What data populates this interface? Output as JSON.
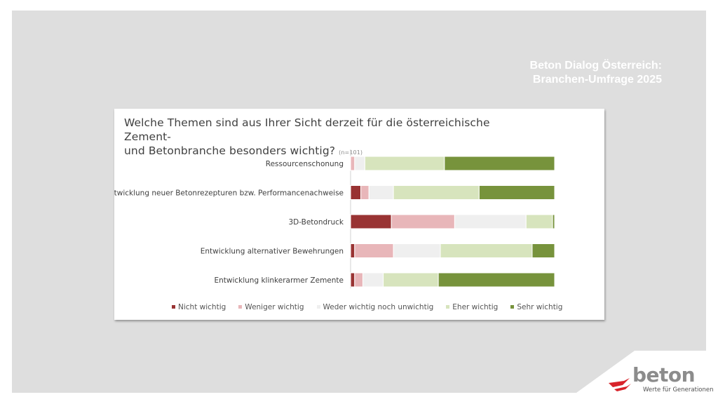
{
  "header": {
    "line1": "Beton Dialog Österreich:",
    "line2": "Branchen-Umfrage 2025"
  },
  "question": {
    "line1": "Welche Themen sind aus Ihrer Sicht derzeit für die österreichische Zement-",
    "line2": "und Betonbranche besonders wichtig?",
    "sample": "(n=101)"
  },
  "colors": {
    "slide_bg": "#dedede",
    "nicht": "#993333",
    "weniger": "#e8b6b9",
    "weder": "#efefef",
    "eher": "#d7e4bd",
    "sehr": "#77933c"
  },
  "chart_data": {
    "type": "bar",
    "orientation": "horizontal-stacked-100",
    "categories": [
      "Ressourcenschonung",
      "Entwicklung neuer Betonrezepturen bzw. Performancenachweise",
      "3D-Betondruck",
      "Entwicklung alternativer Bewehrungen",
      "Entwicklung klinkerarmer Zemente"
    ],
    "series": [
      {
        "name": "Nicht wichtig",
        "color": "#993333",
        "values": [
          0,
          5,
          20,
          2,
          2
        ]
      },
      {
        "name": "Weniger wichtig",
        "color": "#e8b6b9",
        "values": [
          2,
          4,
          31,
          19,
          4
        ]
      },
      {
        "name": "Weder wichtig noch unwichtig",
        "color": "#efefef",
        "values": [
          5,
          12,
          35,
          23,
          10
        ]
      },
      {
        "name": "Eher wichtig",
        "color": "#d7e4bd",
        "values": [
          39,
          42,
          13,
          45,
          27
        ]
      },
      {
        "name": "Sehr wichtig",
        "color": "#77933c",
        "values": [
          54,
          37,
          1,
          11,
          57
        ]
      }
    ],
    "xlim": [
      0,
      100
    ],
    "legend_position": "bottom"
  },
  "logo": {
    "wordmark": "beton",
    "tagline": "Werte für Generationen"
  }
}
